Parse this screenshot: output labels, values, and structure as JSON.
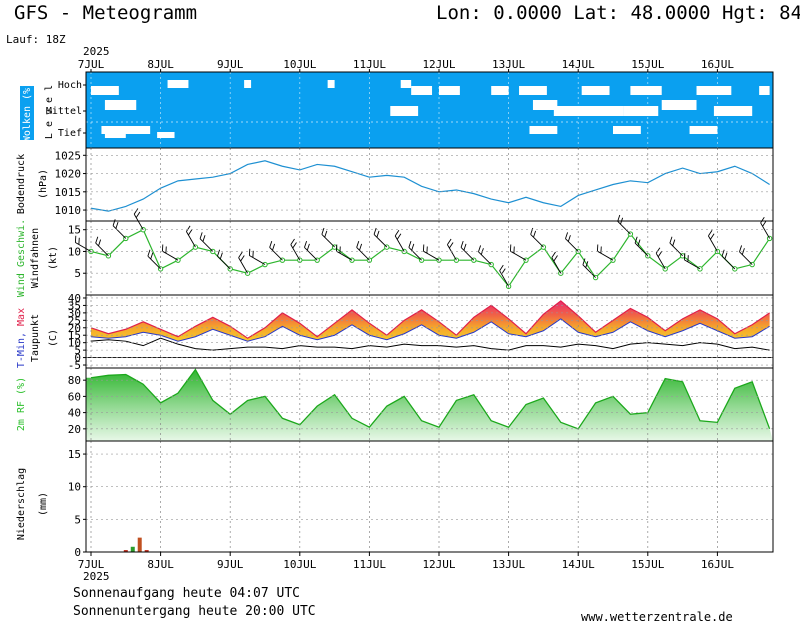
{
  "header": {
    "title": "GFS - Meteogramm",
    "location": "Lon: 0.0000 Lat: 48.0000 Hgt: 84",
    "run": "Lauf: 18Z"
  },
  "dates": {
    "year": "2025",
    "days": [
      "7JUL",
      "8JUL",
      "9JUL",
      "10JUL",
      "11JUL",
      "12JUL",
      "13JUL",
      "14JUL",
      "15JUL",
      "16JUL"
    ]
  },
  "footer": {
    "sunrise": "Sonnenaufgang heute 04:07 UTC",
    "sunset": "Sonnenuntergang heute 20:00 UTC",
    "website": "www.wetterzentrale.de"
  },
  "panels": {
    "clouds": {
      "ylabel": "Wolken (%)",
      "sublabel": "L e v e l",
      "levels": [
        "Hoch",
        "Mittel",
        "Tief"
      ],
      "background": "#0aa0f0"
    },
    "pressure": {
      "ylabel": "Bodendruck",
      "unit": "(hPa)",
      "ticks": [
        "1025",
        "1020",
        "1015",
        "1010"
      ],
      "color": "#1e90d2"
    },
    "wind": {
      "ylabel": "Wind Geschwi.",
      "sublabel": "Windfahnen",
      "unit": "(kt)",
      "ticks": [
        "15",
        "10",
        "5"
      ],
      "color": "#2db52d"
    },
    "temp": {
      "ylabel_min": "T-Min,",
      "ylabel_max": "Max",
      "sublabel": "Taupunkt",
      "unit": "(C)",
      "ticks": [
        "40",
        "35",
        "30",
        "25",
        "20",
        "15",
        "10",
        "5",
        "0",
        "-5"
      ]
    },
    "rh": {
      "ylabel": "2m RF (%)",
      "ticks": [
        "80",
        "60",
        "40",
        "20"
      ],
      "color": "#2cc02c"
    },
    "precip": {
      "ylabel": "Niederschlag",
      "unit": "(mm)",
      "ticks": [
        "15",
        "10",
        "5",
        "0"
      ]
    }
  },
  "chart_data": {
    "type": "line",
    "x_unit": "days since 7JUL 00Z",
    "pressure_hpa": {
      "x": [
        0,
        0.25,
        0.5,
        0.75,
        1,
        1.25,
        1.5,
        1.75,
        2,
        2.25,
        2.5,
        2.75,
        3,
        3.25,
        3.5,
        3.75,
        4,
        4.25,
        4.5,
        4.75,
        5,
        5.25,
        5.5,
        5.75,
        6,
        6.25,
        6.5,
        6.75,
        7,
        7.25,
        7.5,
        7.75,
        8,
        8.25,
        8.5,
        8.75,
        9,
        9.25,
        9.5,
        9.75
      ],
      "y": [
        1010.5,
        1009.7,
        1011,
        1013,
        1016,
        1018,
        1018.5,
        1019,
        1020,
        1022.5,
        1023.5,
        1022,
        1021,
        1022.5,
        1022,
        1020.5,
        1019,
        1019.5,
        1019,
        1016.5,
        1015,
        1015.5,
        1014.5,
        1013,
        1012,
        1013.5,
        1012,
        1011,
        1014,
        1015.5,
        1017,
        1018,
        1017.5,
        1020,
        1021.5,
        1020,
        1020.5,
        1022,
        1020,
        1017
      ]
    },
    "wind_kt": {
      "x": [
        0,
        0.25,
        0.5,
        0.75,
        1,
        1.25,
        1.5,
        1.75,
        2,
        2.25,
        2.5,
        2.75,
        3,
        3.25,
        3.5,
        3.75,
        4,
        4.25,
        4.5,
        4.75,
        5,
        5.25,
        5.5,
        5.75,
        6,
        6.25,
        6.5,
        6.75,
        7,
        7.25,
        7.5,
        7.75,
        8,
        8.25,
        8.5,
        8.75,
        9,
        9.25,
        9.5,
        9.75
      ],
      "y": [
        10,
        9,
        13,
        15,
        6,
        8,
        11,
        10,
        6,
        5,
        7,
        8,
        8,
        8,
        11,
        8,
        8,
        11,
        10,
        8,
        8,
        8,
        8,
        7,
        2,
        8,
        11,
        5,
        10,
        4,
        8,
        14,
        9,
        6,
        9,
        6,
        10,
        6,
        7,
        13
      ]
    },
    "tmax_c": {
      "x": [
        0,
        0.25,
        0.5,
        0.75,
        1,
        1.25,
        1.5,
        1.75,
        2,
        2.25,
        2.5,
        2.75,
        3,
        3.25,
        3.5,
        3.75,
        4,
        4.25,
        4.5,
        4.75,
        5,
        5.25,
        5.5,
        5.75,
        6,
        6.25,
        6.5,
        6.75,
        7,
        7.25,
        7.5,
        7.75,
        8,
        8.25,
        8.5,
        8.75,
        9,
        9.25,
        9.5,
        9.75
      ],
      "y": [
        20,
        16,
        19,
        24,
        19,
        14,
        21,
        27,
        21,
        13,
        20,
        30,
        23,
        14,
        23,
        32,
        23,
        15,
        25,
        32,
        24,
        15,
        27,
        35,
        26,
        16,
        29,
        38,
        28,
        17,
        25,
        33,
        27,
        18,
        26,
        32,
        26,
        16,
        22,
        30
      ]
    },
    "tmin_c": {
      "x": [
        0,
        0.25,
        0.5,
        0.75,
        1,
        1.25,
        1.5,
        1.75,
        2,
        2.25,
        2.5,
        2.75,
        3,
        3.25,
        3.5,
        3.75,
        4,
        4.25,
        4.5,
        4.75,
        5,
        5.25,
        5.5,
        5.75,
        6,
        6.25,
        6.5,
        6.75,
        7,
        7.25,
        7.5,
        7.75,
        8,
        8.25,
        8.5,
        8.75,
        9,
        9.25,
        9.5,
        9.75
      ],
      "y": [
        14,
        13,
        14,
        17,
        15,
        11,
        14,
        19,
        15,
        11,
        14,
        21,
        15,
        12,
        15,
        22,
        15,
        12,
        16,
        22,
        15,
        13,
        17,
        24,
        16,
        14,
        18,
        26,
        17,
        14,
        17,
        24,
        18,
        14,
        18,
        23,
        18,
        13,
        14,
        21
      ]
    },
    "dewpoint_c": {
      "x": [
        0,
        0.25,
        0.5,
        0.75,
        1,
        1.25,
        1.5,
        1.75,
        2,
        2.25,
        2.5,
        2.75,
        3,
        3.25,
        3.5,
        3.75,
        4,
        4.25,
        4.5,
        4.75,
        5,
        5.25,
        5.5,
        5.75,
        6,
        6.25,
        6.5,
        6.75,
        7,
        7.25,
        7.5,
        7.75,
        8,
        8.25,
        8.5,
        8.75,
        9,
        9.25,
        9.5,
        9.75
      ],
      "y": [
        11,
        12,
        11,
        8,
        13,
        9,
        6,
        5,
        6,
        7,
        7,
        6,
        8,
        7,
        7,
        6,
        8,
        7,
        9,
        8,
        8,
        7,
        8,
        6,
        5,
        8,
        8,
        7,
        9,
        8,
        6,
        9,
        10,
        9,
        8,
        10,
        9,
        6,
        7,
        5
      ]
    },
    "rh_percent": {
      "x": [
        0,
        0.25,
        0.5,
        0.75,
        1,
        1.25,
        1.5,
        1.75,
        2,
        2.25,
        2.5,
        2.75,
        3,
        3.25,
        3.5,
        3.75,
        4,
        4.25,
        4.5,
        4.75,
        5,
        5.25,
        5.5,
        5.75,
        6,
        6.25,
        6.5,
        6.75,
        7,
        7.25,
        7.5,
        7.75,
        8,
        8.25,
        8.5,
        8.75,
        9,
        9.25,
        9.5,
        9.75
      ],
      "y": [
        83,
        86,
        87,
        75,
        52,
        64,
        93,
        55,
        38,
        55,
        60,
        33,
        25,
        48,
        62,
        33,
        22,
        48,
        60,
        30,
        22,
        55,
        62,
        30,
        22,
        50,
        58,
        28,
        20,
        52,
        60,
        38,
        40,
        82,
        78,
        30,
        28,
        70,
        78,
        20
      ]
    },
    "precip_mm": {
      "x": [
        0.5,
        0.6,
        0.7,
        0.8
      ],
      "y": [
        0.3,
        0.8,
        2.2,
        0.3
      ]
    }
  }
}
